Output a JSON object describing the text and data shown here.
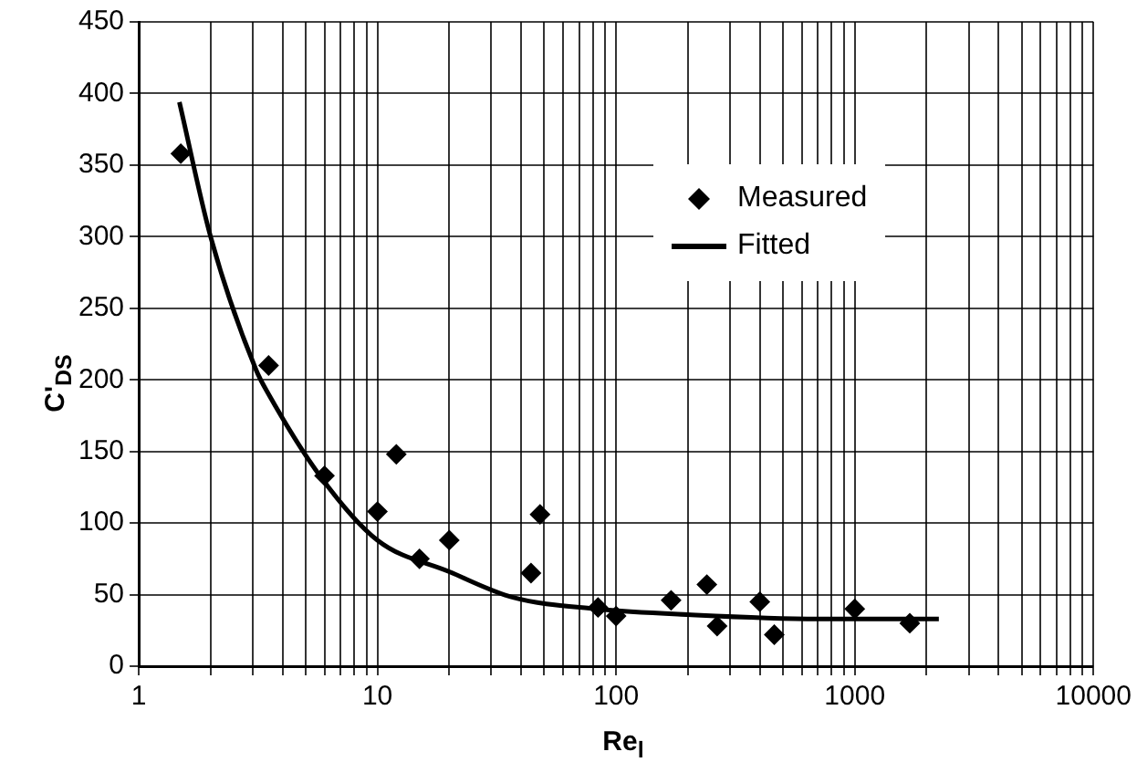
{
  "chart_data": {
    "type": "scatter",
    "xlabel": "Re$_{l}$",
    "ylabel": "C'$_{DS}$",
    "log": "x",
    "grid": true,
    "legend": "top right",
    "xlim": [
      1,
      10000
    ],
    "ylim": [
      0,
      450
    ],
    "xticks": [
      1,
      {
        "value": 2,
        "label": null
      },
      {
        "value": 3,
        "label": null
      },
      {
        "value": 4,
        "label": null
      },
      {
        "value": 5,
        "label": null
      },
      {
        "value": 6,
        "label": null
      },
      {
        "value": 7,
        "label": null
      },
      {
        "value": 8,
        "label": null
      },
      {
        "value": 9,
        "label": null
      },
      10,
      {
        "value": 20,
        "label": null
      },
      {
        "value": 30,
        "label": null
      },
      {
        "value": 40,
        "label": null
      },
      {
        "value": 50,
        "label": null
      },
      {
        "value": 60,
        "label": null
      },
      {
        "value": 70,
        "label": null
      },
      {
        "value": 80,
        "label": null
      },
      {
        "value": 90,
        "label": null
      },
      100,
      {
        "value": 200,
        "label": null
      },
      {
        "value": 300,
        "label": null
      },
      {
        "value": 400,
        "label": null
      },
      {
        "value": 500,
        "label": null
      },
      {
        "value": 600,
        "label": null
      },
      {
        "value": 700,
        "label": null
      },
      {
        "value": 800,
        "label": null
      },
      {
        "value": 900,
        "label": null
      },
      1000,
      {
        "value": 2000,
        "label": null
      },
      {
        "value": 3000,
        "label": null
      },
      {
        "value": 4000,
        "label": null
      },
      {
        "value": 5000,
        "label": null
      },
      {
        "value": 6000,
        "label": null
      },
      {
        "value": 7000,
        "label": null
      },
      {
        "value": 8000,
        "label": null
      },
      {
        "value": 9000,
        "label": null
      },
      10000
    ],
    "yticks": [
      0,
      50,
      100,
      150,
      200,
      250,
      300,
      350,
      400,
      450
    ],
    "series": [
      {
        "name": "Measured",
        "type": "scatter",
        "marker": "diamond",
        "color": "#000000",
        "x": [
          1.5,
          3.5,
          6,
          10,
          12,
          15,
          20,
          44,
          48,
          84,
          100,
          170,
          240,
          265,
          400,
          460,
          1000,
          1700
        ],
        "values": [
          358,
          210,
          133,
          108,
          148,
          75,
          88,
          65,
          106,
          41,
          35,
          46,
          57,
          28,
          45,
          22,
          40,
          30
        ]
      },
      {
        "name": "Fitted",
        "type": "line",
        "marker": "none",
        "line_style": "solid",
        "color": "#000000",
        "x": [
          1.48,
          2,
          3.1,
          3.5,
          5.8,
          10,
          20,
          37,
          83,
          200,
          700,
          2250
        ],
        "values": [
          394,
          300,
          207,
          190,
          132,
          88,
          66,
          48,
          40,
          36,
          33,
          33
        ]
      }
    ]
  }
}
